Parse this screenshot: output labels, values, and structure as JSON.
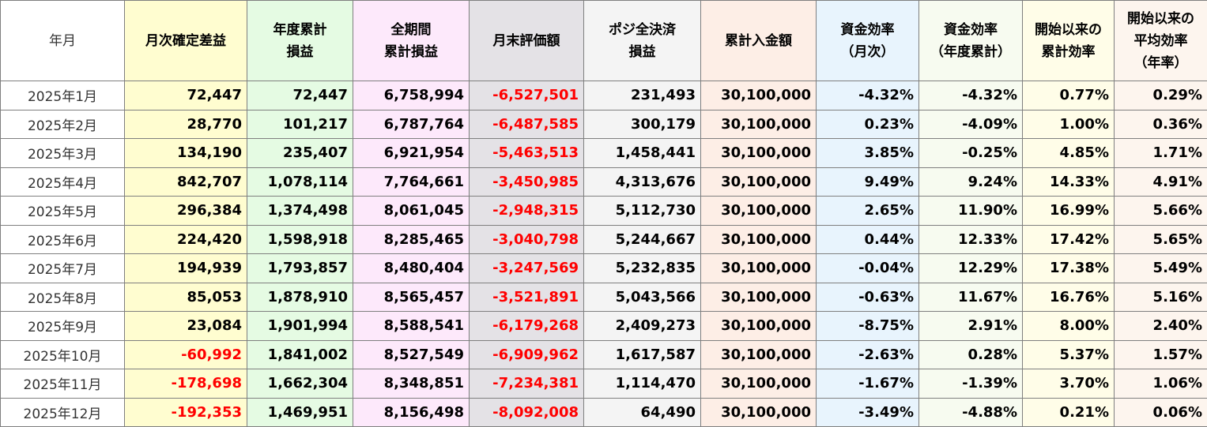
{
  "headers": {
    "ym": [
      "年月"
    ],
    "monthly": [
      "月次確定差益"
    ],
    "yearly": [
      "年度累計",
      "損益"
    ],
    "total": [
      "全期間",
      "累計損益"
    ],
    "eval": [
      "月末評価額"
    ],
    "pos": [
      "ポジ全決済",
      "損益"
    ],
    "deposit": [
      "累計入金額"
    ],
    "effm": [
      "資金効率",
      "（月次）"
    ],
    "effy": [
      "資金効率",
      "（年度累計）"
    ],
    "effc": [
      "開始以来の",
      "累計効率"
    ],
    "effa": [
      "開始以来の",
      "平均効率",
      "（年率）"
    ]
  },
  "rows": [
    {
      "ym": "2025年1月",
      "monthly": "72,447",
      "yearly": "72,447",
      "total": "6,758,994",
      "eval": "-6,527,501",
      "pos": "231,493",
      "deposit": "30,100,000",
      "effm": "-4.32%",
      "effy": "-4.32%",
      "effc": "0.77%",
      "effa": "0.29%"
    },
    {
      "ym": "2025年2月",
      "monthly": "28,770",
      "yearly": "101,217",
      "total": "6,787,764",
      "eval": "-6,487,585",
      "pos": "300,179",
      "deposit": "30,100,000",
      "effm": "0.23%",
      "effy": "-4.09%",
      "effc": "1.00%",
      "effa": "0.36%"
    },
    {
      "ym": "2025年3月",
      "monthly": "134,190",
      "yearly": "235,407",
      "total": "6,921,954",
      "eval": "-5,463,513",
      "pos": "1,458,441",
      "deposit": "30,100,000",
      "effm": "3.85%",
      "effy": "-0.25%",
      "effc": "4.85%",
      "effa": "1.71%"
    },
    {
      "ym": "2025年4月",
      "monthly": "842,707",
      "yearly": "1,078,114",
      "total": "7,764,661",
      "eval": "-3,450,985",
      "pos": "4,313,676",
      "deposit": "30,100,000",
      "effm": "9.49%",
      "effy": "9.24%",
      "effc": "14.33%",
      "effa": "4.91%"
    },
    {
      "ym": "2025年5月",
      "monthly": "296,384",
      "yearly": "1,374,498",
      "total": "8,061,045",
      "eval": "-2,948,315",
      "pos": "5,112,730",
      "deposit": "30,100,000",
      "effm": "2.65%",
      "effy": "11.90%",
      "effc": "16.99%",
      "effa": "5.66%"
    },
    {
      "ym": "2025年6月",
      "monthly": "224,420",
      "yearly": "1,598,918",
      "total": "8,285,465",
      "eval": "-3,040,798",
      "pos": "5,244,667",
      "deposit": "30,100,000",
      "effm": "0.44%",
      "effy": "12.33%",
      "effc": "17.42%",
      "effa": "5.65%"
    },
    {
      "ym": "2025年7月",
      "monthly": "194,939",
      "yearly": "1,793,857",
      "total": "8,480,404",
      "eval": "-3,247,569",
      "pos": "5,232,835",
      "deposit": "30,100,000",
      "effm": "-0.04%",
      "effy": "12.29%",
      "effc": "17.38%",
      "effa": "5.49%"
    },
    {
      "ym": "2025年8月",
      "monthly": "85,053",
      "yearly": "1,878,910",
      "total": "8,565,457",
      "eval": "-3,521,891",
      "pos": "5,043,566",
      "deposit": "30,100,000",
      "effm": "-0.63%",
      "effy": "11.67%",
      "effc": "16.76%",
      "effa": "5.16%"
    },
    {
      "ym": "2025年9月",
      "monthly": "23,084",
      "yearly": "1,901,994",
      "total": "8,588,541",
      "eval": "-6,179,268",
      "pos": "2,409,273",
      "deposit": "30,100,000",
      "effm": "-8.75%",
      "effy": "2.91%",
      "effc": "8.00%",
      "effa": "2.40%"
    },
    {
      "ym": "2025年10月",
      "monthly": "-60,992",
      "yearly": "1,841,002",
      "total": "8,527,549",
      "eval": "-6,909,962",
      "pos": "1,617,587",
      "deposit": "30,100,000",
      "effm": "-2.63%",
      "effy": "0.28%",
      "effc": "5.37%",
      "effa": "1.57%"
    },
    {
      "ym": "2025年11月",
      "monthly": "-178,698",
      "yearly": "1,662,304",
      "total": "8,348,851",
      "eval": "-7,234,381",
      "pos": "1,114,470",
      "deposit": "30,100,000",
      "effm": "-1.67%",
      "effy": "-1.39%",
      "effc": "3.70%",
      "effa": "1.06%"
    },
    {
      "ym": "2025年12月",
      "monthly": "-192,353",
      "yearly": "1,469,951",
      "total": "8,156,498",
      "eval": "-8,092,008",
      "pos": "64,490",
      "deposit": "30,100,000",
      "effm": "-3.49%",
      "effy": "-4.88%",
      "effc": "0.21%",
      "effa": "0.06%"
    }
  ],
  "colors": {
    "negative_text": "#ff0000",
    "monthly_bg": "#fffdd0",
    "yearly_bg": "#e5fbe3",
    "total_bg": "#fde9fb",
    "eval_bg": "#e4e2e6",
    "pos_bg": "#f4f4f4",
    "deposit_bg": "#fdeee6",
    "effm_bg": "#e8f4fd"
  }
}
